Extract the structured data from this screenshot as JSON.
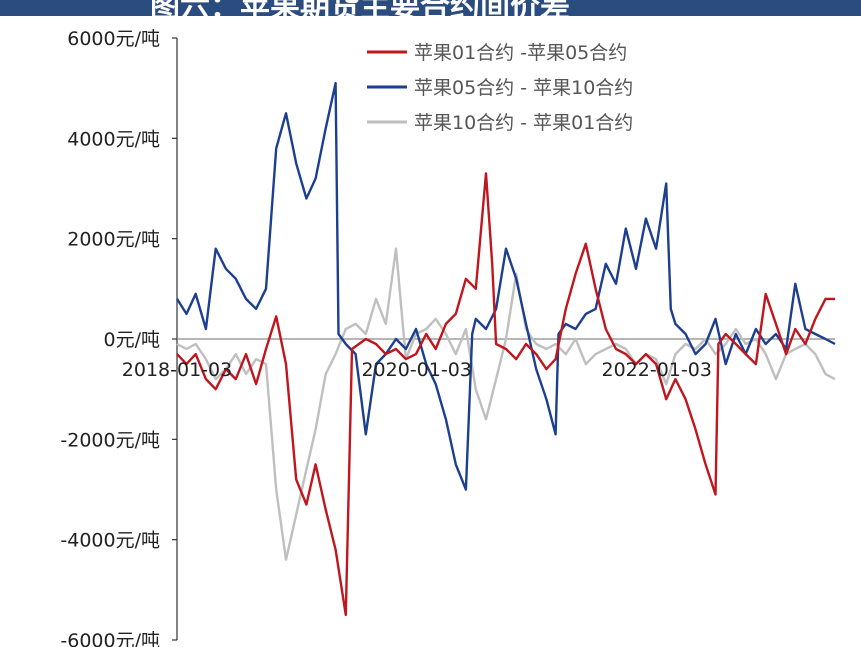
{
  "title": "图六：苹果期货主要合约间价差",
  "chart_data": {
    "type": "line",
    "ylim": [
      -6000,
      6000
    ],
    "xlim": [
      "2018-01-03",
      "2023-06-30"
    ],
    "y_ticks": [
      {
        "value": 6000,
        "label": "6000元/吨"
      },
      {
        "value": 4000,
        "label": "4000元/吨"
      },
      {
        "value": 2000,
        "label": "2000元/吨"
      },
      {
        "value": 0,
        "label": "0元/吨"
      },
      {
        "value": -2000,
        "label": "-2000元/吨"
      },
      {
        "value": -4000,
        "label": "-4000元/吨"
      },
      {
        "value": -6000,
        "label": "-6000元/吨"
      }
    ],
    "x_labels": [
      "2018-01-03",
      "2020-01-03",
      "2022-01-03"
    ],
    "legend_position": "top-right",
    "grid": false,
    "series": [
      {
        "name": "苹果01合约 -苹果05合约",
        "color": "#c0161e",
        "points": [
          [
            "2018-01-03",
            -300
          ],
          [
            "2018-02-01",
            -500
          ],
          [
            "2018-03-01",
            -300
          ],
          [
            "2018-04-01",
            -800
          ],
          [
            "2018-05-01",
            -1000
          ],
          [
            "2018-06-01",
            -600
          ],
          [
            "2018-07-01",
            -800
          ],
          [
            "2018-08-01",
            -300
          ],
          [
            "2018-09-01",
            -900
          ],
          [
            "2018-10-01",
            -200
          ],
          [
            "2018-11-01",
            450
          ],
          [
            "2018-12-01",
            -500
          ],
          [
            "2019-01-01",
            -2800
          ],
          [
            "2019-02-01",
            -3300
          ],
          [
            "2019-03-01",
            -2500
          ],
          [
            "2019-04-01",
            -3400
          ],
          [
            "2019-05-01",
            -4200
          ],
          [
            "2019-06-01",
            -5500
          ],
          [
            "2019-06-20",
            -200
          ],
          [
            "2019-08-01",
            0
          ],
          [
            "2019-09-01",
            -100
          ],
          [
            "2019-10-01",
            -300
          ],
          [
            "2019-11-01",
            -200
          ],
          [
            "2019-12-01",
            -400
          ],
          [
            "2020-01-01",
            -300
          ],
          [
            "2020-02-01",
            100
          ],
          [
            "2020-03-01",
            -200
          ],
          [
            "2020-04-01",
            300
          ],
          [
            "2020-05-01",
            500
          ],
          [
            "2020-06-01",
            1200
          ],
          [
            "2020-07-01",
            1000
          ],
          [
            "2020-08-01",
            3300
          ],
          [
            "2020-08-20",
            1500
          ],
          [
            "2020-09-01",
            -100
          ],
          [
            "2020-10-01",
            -200
          ],
          [
            "2020-11-01",
            -400
          ],
          [
            "2020-12-01",
            -100
          ],
          [
            "2021-01-01",
            -300
          ],
          [
            "2021-02-01",
            -600
          ],
          [
            "2021-03-01",
            -400
          ],
          [
            "2021-04-01",
            600
          ],
          [
            "2021-05-01",
            1300
          ],
          [
            "2021-06-01",
            1900
          ],
          [
            "2021-07-01",
            1000
          ],
          [
            "2021-08-01",
            200
          ],
          [
            "2021-09-01",
            -200
          ],
          [
            "2021-10-01",
            -300
          ],
          [
            "2021-11-01",
            -500
          ],
          [
            "2021-12-01",
            -300
          ],
          [
            "2022-01-01",
            -500
          ],
          [
            "2022-02-01",
            -1200
          ],
          [
            "2022-03-01",
            -800
          ],
          [
            "2022-04-01",
            -1200
          ],
          [
            "2022-05-01",
            -1800
          ],
          [
            "2022-06-01",
            -2500
          ],
          [
            "2022-07-01",
            -3100
          ],
          [
            "2022-07-10",
            -100
          ],
          [
            "2022-08-01",
            100
          ],
          [
            "2022-09-01",
            -100
          ],
          [
            "2022-10-01",
            -300
          ],
          [
            "2022-11-01",
            -500
          ],
          [
            "2022-12-01",
            900
          ],
          [
            "2023-01-01",
            300
          ],
          [
            "2023-02-01",
            -300
          ],
          [
            "2023-03-01",
            200
          ],
          [
            "2023-04-01",
            -100
          ],
          [
            "2023-05-01",
            400
          ],
          [
            "2023-06-01",
            800
          ],
          [
            "2023-06-30",
            800
          ]
        ]
      },
      {
        "name": "苹果05合约 - 苹果10合约",
        "color": "#1c3f8f",
        "points": [
          [
            "2018-01-03",
            800
          ],
          [
            "2018-02-01",
            500
          ],
          [
            "2018-03-01",
            900
          ],
          [
            "2018-04-01",
            200
          ],
          [
            "2018-05-01",
            1800
          ],
          [
            "2018-06-01",
            1400
          ],
          [
            "2018-07-01",
            1200
          ],
          [
            "2018-08-01",
            800
          ],
          [
            "2018-09-01",
            600
          ],
          [
            "2018-10-01",
            1000
          ],
          [
            "2018-11-01",
            3800
          ],
          [
            "2018-12-01",
            4500
          ],
          [
            "2019-01-01",
            3500
          ],
          [
            "2019-02-01",
            2800
          ],
          [
            "2019-03-01",
            3200
          ],
          [
            "2019-04-01",
            4200
          ],
          [
            "2019-05-01",
            5100
          ],
          [
            "2019-05-10",
            100
          ],
          [
            "2019-06-01",
            -100
          ],
          [
            "2019-07-01",
            -300
          ],
          [
            "2019-08-01",
            -1900
          ],
          [
            "2019-09-01",
            -500
          ],
          [
            "2019-10-01",
            -300
          ],
          [
            "2019-11-01",
            0
          ],
          [
            "2019-12-01",
            -200
          ],
          [
            "2020-01-01",
            200
          ],
          [
            "2020-02-01",
            -500
          ],
          [
            "2020-03-01",
            -900
          ],
          [
            "2020-04-01",
            -1600
          ],
          [
            "2020-05-01",
            -2500
          ],
          [
            "2020-06-01",
            -3000
          ],
          [
            "2020-06-20",
            100
          ],
          [
            "2020-07-01",
            400
          ],
          [
            "2020-08-01",
            200
          ],
          [
            "2020-09-01",
            600
          ],
          [
            "2020-10-01",
            1800
          ],
          [
            "2020-11-01",
            1200
          ],
          [
            "2020-12-01",
            300
          ],
          [
            "2021-01-01",
            -600
          ],
          [
            "2021-02-01",
            -1200
          ],
          [
            "2021-03-01",
            -1900
          ],
          [
            "2021-03-10",
            100
          ],
          [
            "2021-04-01",
            300
          ],
          [
            "2021-05-01",
            200
          ],
          [
            "2021-06-01",
            500
          ],
          [
            "2021-07-01",
            600
          ],
          [
            "2021-08-01",
            1500
          ],
          [
            "2021-09-01",
            1100
          ],
          [
            "2021-10-01",
            2200
          ],
          [
            "2021-11-01",
            1400
          ],
          [
            "2021-12-01",
            2400
          ],
          [
            "2022-01-01",
            1800
          ],
          [
            "2022-02-01",
            3100
          ],
          [
            "2022-02-15",
            600
          ],
          [
            "2022-03-01",
            300
          ],
          [
            "2022-04-01",
            100
          ],
          [
            "2022-05-01",
            -300
          ],
          [
            "2022-06-01",
            -100
          ],
          [
            "2022-07-01",
            400
          ],
          [
            "2022-08-01",
            -500
          ],
          [
            "2022-09-01",
            100
          ],
          [
            "2022-10-01",
            -300
          ],
          [
            "2022-11-01",
            200
          ],
          [
            "2022-12-01",
            -100
          ],
          [
            "2023-01-01",
            100
          ],
          [
            "2023-02-01",
            -200
          ],
          [
            "2023-03-01",
            1100
          ],
          [
            "2023-04-01",
            200
          ],
          [
            "2023-05-01",
            100
          ],
          [
            "2023-06-01",
            0
          ],
          [
            "2023-06-30",
            -100
          ]
        ]
      },
      {
        "name": "苹果10合约 - 苹果01合约",
        "color": "#bfbfbf",
        "points": [
          [
            "2018-01-03",
            -100
          ],
          [
            "2018-02-01",
            -200
          ],
          [
            "2018-03-01",
            -100
          ],
          [
            "2018-04-01",
            -400
          ],
          [
            "2018-05-01",
            -800
          ],
          [
            "2018-06-01",
            -600
          ],
          [
            "2018-07-01",
            -300
          ],
          [
            "2018-08-01",
            -700
          ],
          [
            "2018-09-01",
            -400
          ],
          [
            "2018-10-01",
            -500
          ],
          [
            "2018-11-01",
            -3000
          ],
          [
            "2018-12-01",
            -4400
          ],
          [
            "2019-01-01",
            -3500
          ],
          [
            "2019-02-01",
            -2600
          ],
          [
            "2019-03-01",
            -1800
          ],
          [
            "2019-04-01",
            -700
          ],
          [
            "2019-05-01",
            -300
          ],
          [
            "2019-06-01",
            200
          ],
          [
            "2019-07-01",
            300
          ],
          [
            "2019-08-01",
            100
          ],
          [
            "2019-09-01",
            800
          ],
          [
            "2019-10-01",
            300
          ],
          [
            "2019-11-01",
            1800
          ],
          [
            "2019-12-01",
            -400
          ],
          [
            "2020-01-01",
            100
          ],
          [
            "2020-02-01",
            200
          ],
          [
            "2020-03-01",
            400
          ],
          [
            "2020-04-01",
            100
          ],
          [
            "2020-05-01",
            -300
          ],
          [
            "2020-06-01",
            200
          ],
          [
            "2020-07-01",
            -1000
          ],
          [
            "2020-08-01",
            -1600
          ],
          [
            "2020-09-01",
            -800
          ],
          [
            "2020-10-01",
            0
          ],
          [
            "2020-11-01",
            1300
          ],
          [
            "2020-12-01",
            200
          ],
          [
            "2021-01-01",
            -100
          ],
          [
            "2021-02-01",
            -200
          ],
          [
            "2021-03-01",
            -100
          ],
          [
            "2021-04-01",
            -300
          ],
          [
            "2021-05-01",
            0
          ],
          [
            "2021-06-01",
            -500
          ],
          [
            "2021-07-01",
            -300
          ],
          [
            "2021-08-01",
            -200
          ],
          [
            "2021-09-01",
            -100
          ],
          [
            "2021-10-01",
            -200
          ],
          [
            "2021-11-01",
            -500
          ],
          [
            "2021-12-01",
            -300
          ],
          [
            "2022-01-01",
            -400
          ],
          [
            "2022-02-01",
            -900
          ],
          [
            "2022-03-01",
            -300
          ],
          [
            "2022-04-01",
            -100
          ],
          [
            "2022-05-01",
            -200
          ],
          [
            "2022-06-01",
            0
          ],
          [
            "2022-07-01",
            -300
          ],
          [
            "2022-08-01",
            -100
          ],
          [
            "2022-09-01",
            200
          ],
          [
            "2022-10-01",
            -100
          ],
          [
            "2022-11-01",
            0
          ],
          [
            "2022-12-01",
            -300
          ],
          [
            "2023-01-01",
            -800
          ],
          [
            "2023-02-01",
            -300
          ],
          [
            "2023-03-01",
            -200
          ],
          [
            "2023-04-01",
            -100
          ],
          [
            "2023-05-01",
            -300
          ],
          [
            "2023-06-01",
            -700
          ],
          [
            "2023-06-30",
            -800
          ]
        ]
      }
    ]
  }
}
